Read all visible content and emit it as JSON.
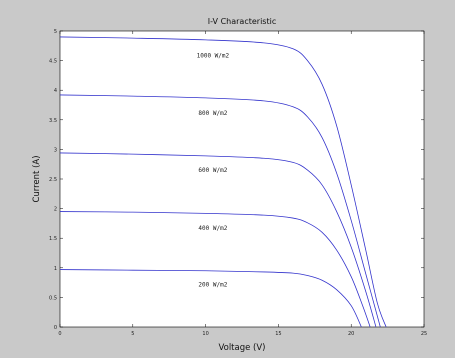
{
  "chart_data": {
    "type": "line",
    "title": "I-V Characteristic",
    "xlabel": "Voltage (V)",
    "ylabel": "Current (A)",
    "xlim": [
      0,
      25
    ],
    "ylim": [
      0,
      5
    ],
    "x_ticks": [
      0,
      5,
      10,
      15,
      20,
      25
    ],
    "y_ticks": [
      0,
      0.5,
      1,
      1.5,
      2,
      2.5,
      3,
      3.5,
      4,
      4.5,
      5
    ],
    "y_tick_labels": [
      "0",
      "0.5",
      "1",
      "1.5",
      "2",
      "2.5",
      "3",
      "3.5",
      "4",
      "4.5",
      "5"
    ],
    "grid": false,
    "line_color": "#3333cc",
    "series": [
      {
        "irradiance": 1000,
        "isc": 4.9,
        "voc": 22.4,
        "points": [
          [
            0,
            4.9
          ],
          [
            5,
            4.88
          ],
          [
            10,
            4.85
          ],
          [
            14,
            4.8
          ],
          [
            16,
            4.7
          ],
          [
            17,
            4.5
          ],
          [
            18,
            4.1
          ],
          [
            19,
            3.4
          ],
          [
            20,
            2.4
          ],
          [
            21,
            1.3
          ],
          [
            21.8,
            0.4
          ],
          [
            22.4,
            0.0
          ]
        ]
      },
      {
        "irradiance": 800,
        "isc": 3.92,
        "voc": 22.0,
        "points": [
          [
            0,
            3.92
          ],
          [
            5,
            3.9
          ],
          [
            10,
            3.87
          ],
          [
            14,
            3.82
          ],
          [
            16,
            3.72
          ],
          [
            17,
            3.55
          ],
          [
            18,
            3.2
          ],
          [
            19,
            2.6
          ],
          [
            20,
            1.8
          ],
          [
            21,
            0.9
          ],
          [
            22.0,
            0.0
          ]
        ]
      },
      {
        "irradiance": 600,
        "isc": 2.94,
        "voc": 21.7,
        "points": [
          [
            0,
            2.94
          ],
          [
            5,
            2.92
          ],
          [
            10,
            2.89
          ],
          [
            14,
            2.85
          ],
          [
            16,
            2.78
          ],
          [
            17,
            2.65
          ],
          [
            18,
            2.4
          ],
          [
            19,
            1.95
          ],
          [
            20,
            1.35
          ],
          [
            21,
            0.6
          ],
          [
            21.7,
            0.0
          ]
        ]
      },
      {
        "irradiance": 400,
        "isc": 1.95,
        "voc": 21.3,
        "points": [
          [
            0,
            1.95
          ],
          [
            5,
            1.94
          ],
          [
            10,
            1.92
          ],
          [
            14,
            1.89
          ],
          [
            16,
            1.84
          ],
          [
            17,
            1.76
          ],
          [
            18,
            1.6
          ],
          [
            19,
            1.3
          ],
          [
            20,
            0.85
          ],
          [
            20.8,
            0.35
          ],
          [
            21.3,
            0.0
          ]
        ]
      },
      {
        "irradiance": 200,
        "isc": 0.97,
        "voc": 20.7,
        "points": [
          [
            0,
            0.97
          ],
          [
            5,
            0.96
          ],
          [
            10,
            0.95
          ],
          [
            14,
            0.93
          ],
          [
            16,
            0.91
          ],
          [
            17,
            0.87
          ],
          [
            18,
            0.79
          ],
          [
            19,
            0.63
          ],
          [
            20,
            0.36
          ],
          [
            20.7,
            0.0
          ]
        ]
      }
    ],
    "annotations": [
      {
        "text": "1000 W/m2",
        "x": 10.5,
        "y": 4.55
      },
      {
        "text": "800 W/m2",
        "x": 10.5,
        "y": 3.58
      },
      {
        "text": "600 W/m2",
        "x": 10.5,
        "y": 2.62
      },
      {
        "text": "400 W/m2",
        "x": 10.5,
        "y": 1.64
      },
      {
        "text": "200 W/m2",
        "x": 10.5,
        "y": 0.68
      }
    ]
  }
}
